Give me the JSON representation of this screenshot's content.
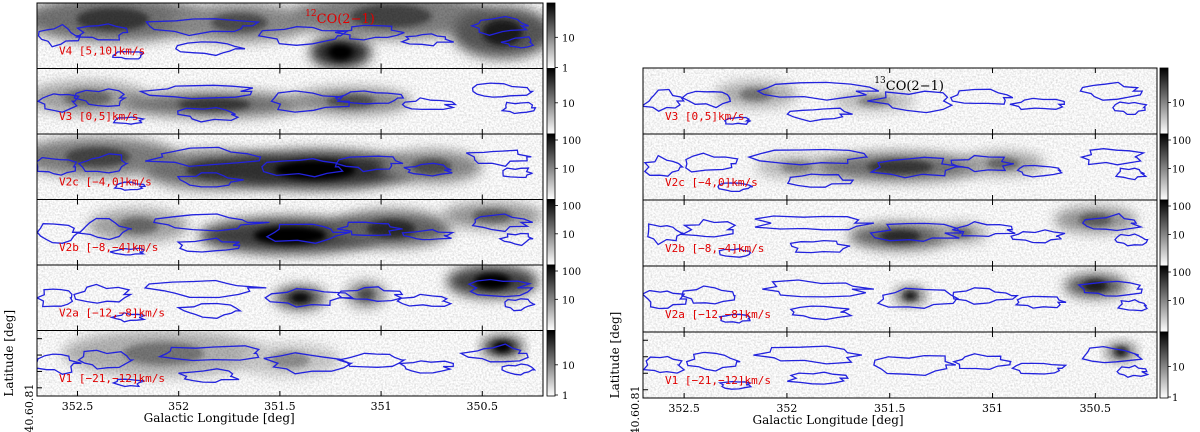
{
  "chart_data": [
    {
      "type": "heatmap",
      "tracer_label": "CO(2−1)",
      "tracer_isotope": "12",
      "xlabel": "Galactic Longitude [deg]",
      "ylabel": "Latitude [deg]",
      "xlim": [
        352.7,
        350.2
      ],
      "x_ticks": [
        "352.5",
        "352",
        "351.5",
        "351",
        "350.5"
      ],
      "x_tick_values": [
        352.5,
        352.0,
        351.5,
        351.0,
        350.5
      ],
      "y_ticks": [
        "0.4",
        "0.6",
        "0.8",
        "1"
      ],
      "y_tick_values": [
        0.4,
        0.6,
        0.8,
        1.0
      ],
      "ylim": [
        0.3,
        1.1
      ],
      "colormap": "grayscale",
      "contour_color": "#2222dd",
      "label_color": "#e00000",
      "panels": [
        {
          "label": "V4 [5,10]km/s",
          "colorbar_ticks": [
            "10",
            "1"
          ],
          "colorbar_values": [
            10,
            1
          ]
        },
        {
          "label": "V3 [0,5]km/s",
          "colorbar_ticks": [
            "10"
          ],
          "colorbar_values": [
            10
          ]
        },
        {
          "label": "V2c [−4,0]km/s",
          "colorbar_ticks": [
            "100",
            "10"
          ],
          "colorbar_values": [
            100,
            10
          ]
        },
        {
          "label": "V2b [−8,−4]km/s",
          "colorbar_ticks": [
            "100",
            "10"
          ],
          "colorbar_values": [
            100,
            10
          ]
        },
        {
          "label": "V2a [−12,−8]km/s",
          "colorbar_ticks": [
            "100",
            "10"
          ],
          "colorbar_values": [
            100,
            10
          ]
        },
        {
          "label": "V1 [−21,−12]km/s",
          "colorbar_ticks": [
            "10",
            "1"
          ],
          "colorbar_values": [
            10,
            1
          ]
        }
      ]
    },
    {
      "type": "heatmap",
      "tracer_label": "CO(2−1)",
      "tracer_isotope": "13",
      "xlabel": "Galactic Longitude [deg]",
      "ylabel": "Latitude [deg]",
      "xlim": [
        352.7,
        350.2
      ],
      "x_ticks": [
        "352.5",
        "352",
        "351.5",
        "351",
        "350.5"
      ],
      "x_tick_values": [
        352.5,
        352.0,
        351.5,
        351.0,
        350.5
      ],
      "y_ticks": [
        "0.4",
        "0.6",
        "0.8",
        "1"
      ],
      "y_tick_values": [
        0.4,
        0.6,
        0.8,
        1.0
      ],
      "ylim": [
        0.3,
        1.1
      ],
      "colormap": "grayscale",
      "contour_color": "#2222dd",
      "label_color": "#e00000",
      "panels": [
        {
          "label": "V3 [0,5]km/s",
          "colorbar_ticks": [
            "10"
          ],
          "colorbar_values": [
            10
          ]
        },
        {
          "label": "V2c [−4,0]km/s",
          "colorbar_ticks": [
            "100",
            "10"
          ],
          "colorbar_values": [
            100,
            10
          ]
        },
        {
          "label": "V2b [−8,−4]km/s",
          "colorbar_ticks": [
            "100",
            "10"
          ],
          "colorbar_values": [
            100,
            10
          ]
        },
        {
          "label": "V2a [−12,−8]km/s",
          "colorbar_ticks": [
            "100",
            "10"
          ],
          "colorbar_values": [
            100,
            10
          ]
        },
        {
          "label": "V1 [−21,−12]km/s",
          "colorbar_ticks": [
            "10",
            "1"
          ],
          "colorbar_values": [
            10,
            1
          ]
        }
      ]
    }
  ]
}
